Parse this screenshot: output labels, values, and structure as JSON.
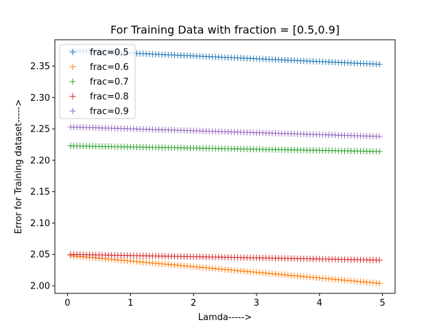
{
  "chart_data": {
    "type": "scatter",
    "marker": "plus",
    "title": "For Training Data with fraction = [0.5,0.9]",
    "xlabel": "Lamda----->",
    "ylabel": "Error for Training dataset----->",
    "xlim": [
      -0.2,
      5.2
    ],
    "ylim": [
      1.988,
      2.392
    ],
    "xticks": [
      0,
      1,
      2,
      3,
      4,
      5
    ],
    "yticks": [
      2.0,
      2.05,
      2.1,
      2.15,
      2.2,
      2.25,
      2.3,
      2.35
    ],
    "ytick_labels": [
      "2.00",
      "2.05",
      "2.10",
      "2.15",
      "2.20",
      "2.25",
      "2.30",
      "2.35"
    ],
    "xtick_labels": [
      "0",
      "1",
      "2",
      "3",
      "4",
      "5"
    ],
    "x": {
      "start": 0.05,
      "stop": 4.95,
      "step": 0.05
    },
    "legend_position": "upper-left",
    "series": [
      {
        "name": "frac=0.5",
        "color": "#1f77b4",
        "y_start": 2.375,
        "y_end": 2.353
      },
      {
        "name": "frac=0.6",
        "color": "#ff7f0e",
        "y_start": 2.048,
        "y_end": 2.004
      },
      {
        "name": "frac=0.7",
        "color": "#2ca02c",
        "y_start": 2.223,
        "y_end": 2.214
      },
      {
        "name": "frac=0.8",
        "color": "#d62728",
        "y_start": 2.05,
        "y_end": 2.041
      },
      {
        "name": "frac=0.9",
        "color": "#9467bd",
        "y_start": 2.253,
        "y_end": 2.238
      }
    ]
  }
}
